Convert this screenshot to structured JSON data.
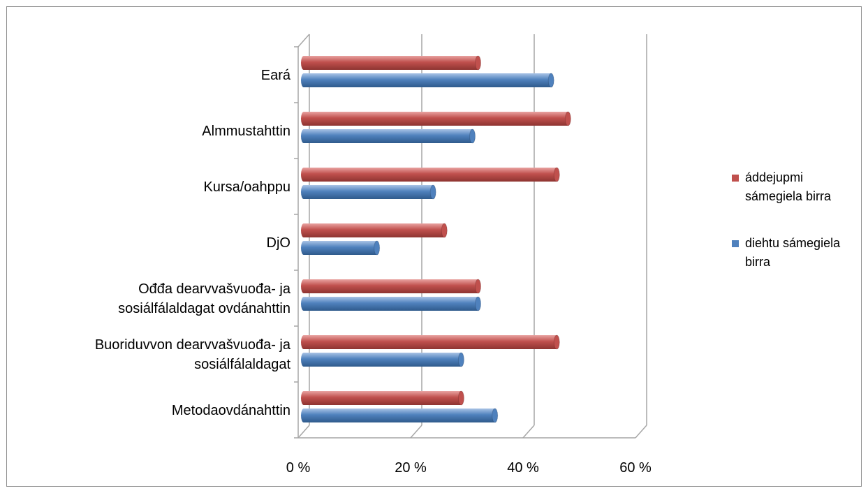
{
  "chart_data": {
    "type": "bar",
    "orientation": "horizontal",
    "categories": [
      "Metodaovdánahttin",
      "Buoriduvvon dearvvašvuođa- ja sosiálfálaldagat",
      "Ođđa dearvvašvuođa- ja sosiálfálaldagat ovdánahttin",
      "DjO",
      "Kursa/oahppu",
      "Almmustahttin",
      "Eará"
    ],
    "category_lines": [
      [
        "Metodaovdánahttin"
      ],
      [
        "Buoriduvvon dearvvašvuođa- ja",
        "sosiálfálaldagat"
      ],
      [
        "Ođđa dearvvašvuođa- ja",
        "sosiálfálaldagat ovdánahttin"
      ],
      [
        "DjO"
      ],
      [
        "Kursa/oahppu"
      ],
      [
        "Almmustahttin"
      ],
      [
        "Eará"
      ]
    ],
    "series": [
      {
        "name": "áddejupmi sámegiela birra",
        "name_lines": [
          "áddejupmi",
          "sámegiela birra"
        ],
        "color": "#c0504d",
        "values": [
          28,
          45,
          31,
          25,
          45,
          47,
          31
        ]
      },
      {
        "name": "diehtu sámegiela birra",
        "name_lines": [
          "diehtu sámegiela",
          "birra"
        ],
        "color": "#4f81bd",
        "values": [
          34,
          28,
          31,
          13,
          23,
          30,
          44
        ]
      }
    ],
    "x_ticks": [
      "0 %",
      "20 %",
      "40 %",
      "60 %"
    ],
    "xlim": [
      0,
      60
    ],
    "grid": true,
    "legend": "right"
  }
}
